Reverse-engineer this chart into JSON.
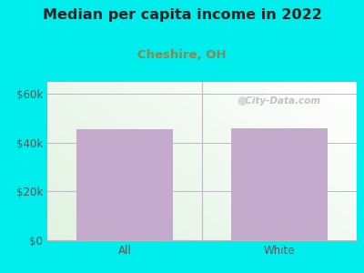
{
  "title": "Median per capita income in 2022",
  "subtitle": "Cheshire, OH",
  "categories": [
    "All",
    "White"
  ],
  "values": [
    45500,
    46000
  ],
  "bar_color": "#C4AACC",
  "bg_color": "#00EDED",
  "title_fontsize": 11.5,
  "subtitle_fontsize": 9.5,
  "tick_fontsize": 8.5,
  "ylabel_ticks": [
    0,
    20000,
    40000,
    60000
  ],
  "ylabel_labels": [
    "$0",
    "$20k",
    "$40k",
    "$60k"
  ],
  "ylim": [
    0,
    65000
  ],
  "subtitle_color": "#888855",
  "title_color": "#222222",
  "axis_color": "#bbbbbb",
  "tick_color": "#555555",
  "watermark": "City-Data.com"
}
